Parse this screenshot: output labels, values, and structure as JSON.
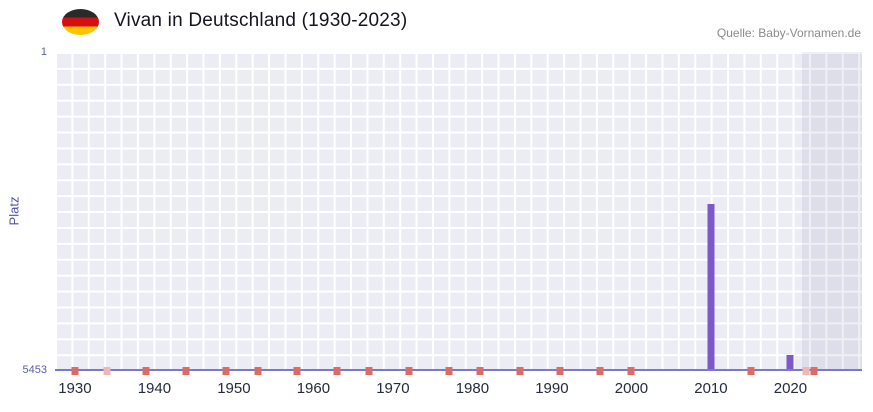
{
  "header": {
    "title": "Vivan in Deutschland (1930-2023)",
    "source": "Quelle: Baby-Vornamen.de",
    "flag_icon": "germany-flag-icon"
  },
  "chart_data": {
    "type": "bar",
    "title": "Vivan in Deutschland (1930-2023)",
    "xlabel": "",
    "ylabel": "Platz",
    "grid": true,
    "legend": false,
    "y_axis": {
      "min": 1,
      "max": 5453,
      "inverted": true,
      "top_label": "1",
      "bottom_label": "5453"
    },
    "x_axis": {
      "tick_labels": [
        "1930",
        "1940",
        "1950",
        "1960",
        "1970",
        "1980",
        "1990",
        "2000",
        "2010",
        "2020"
      ],
      "range": [
        1930,
        2023
      ]
    },
    "series": [
      {
        "name": "Platz",
        "points": [
          {
            "year": 2010,
            "rank": 2600
          },
          {
            "year": 2020,
            "rank": 5200
          }
        ]
      }
    ],
    "unranked_years": [
      {
        "year": 1930,
        "shade": "strong"
      },
      {
        "year": 1934,
        "shade": "light"
      },
      {
        "year": 1939,
        "shade": "strong"
      },
      {
        "year": 1944,
        "shade": "strong"
      },
      {
        "year": 1949,
        "shade": "strong"
      },
      {
        "year": 1953,
        "shade": "strong"
      },
      {
        "year": 1958,
        "shade": "strong"
      },
      {
        "year": 1963,
        "shade": "strong"
      },
      {
        "year": 1967,
        "shade": "strong"
      },
      {
        "year": 1972,
        "shade": "strong"
      },
      {
        "year": 1977,
        "shade": "strong"
      },
      {
        "year": 1981,
        "shade": "strong"
      },
      {
        "year": 1986,
        "shade": "strong"
      },
      {
        "year": 1991,
        "shade": "strong"
      },
      {
        "year": 1996,
        "shade": "strong"
      },
      {
        "year": 2000,
        "shade": "strong"
      },
      {
        "year": 2015,
        "shade": "strong"
      },
      {
        "year": 2022,
        "shade": "light"
      },
      {
        "year": 2023,
        "shade": "strong"
      }
    ],
    "highlight_band": {
      "from_year": 2022,
      "to_year": 2023
    },
    "colors": {
      "bar": "#7e57c8",
      "mark_strong": "#dd6a64",
      "mark_light": "#f0b6b6",
      "plot_bg": "#ececf5",
      "grid": "#ffffff",
      "band": "rgba(98,98,145,0.10)",
      "axis_line": "#7878cf"
    }
  }
}
